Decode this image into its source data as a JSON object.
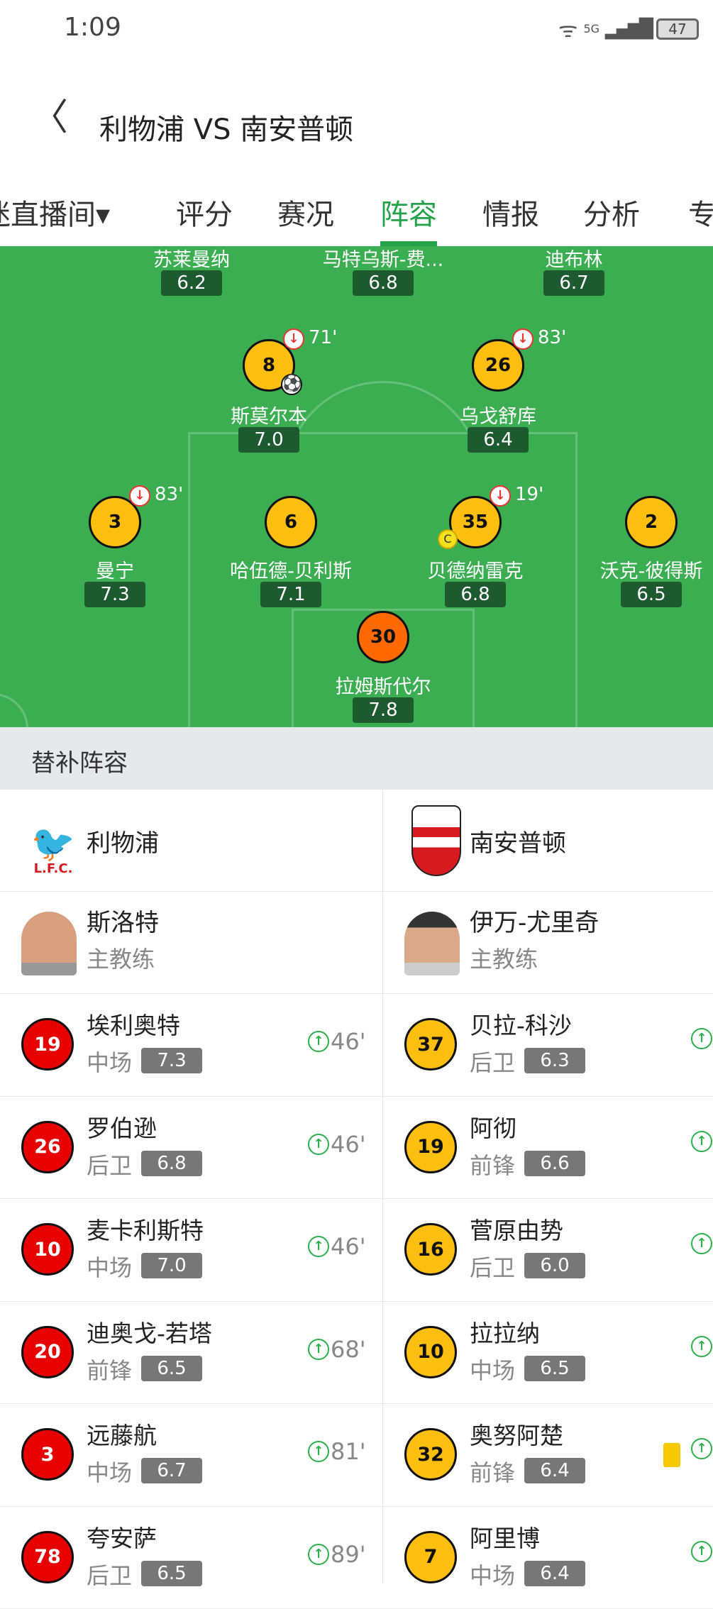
{
  "status_bar": {
    "time": "1:09",
    "network": "5G",
    "battery": "47"
  },
  "header": {
    "title": "利物浦 VS 南安普顿"
  },
  "tabs": [
    {
      "label": "迷直播间▾"
    },
    {
      "label": "评分"
    },
    {
      "label": "赛况"
    },
    {
      "label": "阵容",
      "active": true
    },
    {
      "label": "情报"
    },
    {
      "label": "分析"
    },
    {
      "label": "专"
    }
  ],
  "colors": {
    "accent": "#22a34a",
    "pitch": "#3cae52",
    "rating_box": "#1e5a30",
    "home_circle": "#e60000",
    "away_circle": "#fdbf0f",
    "goalkeeper": "#ff6a00"
  },
  "pitch_players": [
    {
      "name": "苏莱曼纳",
      "rating": "6.2"
    },
    {
      "name": "马特乌斯-费...",
      "rating": "6.8"
    },
    {
      "name": "迪布林",
      "rating": "6.7"
    },
    {
      "number": "8",
      "name": "斯莫尔本",
      "rating": "7.0",
      "sub_off": "71'",
      "goal": true
    },
    {
      "number": "26",
      "name": "乌戈舒库",
      "rating": "6.4",
      "sub_off": "83'"
    },
    {
      "number": "3",
      "name": "曼宁",
      "rating": "7.3",
      "sub_off": "83'"
    },
    {
      "number": "6",
      "name": "哈伍德-贝利斯",
      "rating": "7.1"
    },
    {
      "number": "35",
      "name": "贝德纳雷克",
      "rating": "6.8",
      "sub_off": "19'",
      "captain": "C"
    },
    {
      "number": "2",
      "name": "沃克-彼得斯",
      "rating": "6.5"
    },
    {
      "number": "30",
      "name": "拉姆斯代尔",
      "rating": "7.8",
      "goalkeeper": true
    }
  ],
  "substitutes": {
    "title": "替补阵容",
    "home": {
      "team": "利物浦",
      "crest": "L.F.C.",
      "coach": "斯洛特",
      "coach_role": "主教练",
      "players": [
        {
          "number": "19",
          "name": "埃利奥特",
          "position": "中场",
          "rating": "7.3",
          "sub_in": "46'"
        },
        {
          "number": "26",
          "name": "罗伯逊",
          "position": "后卫",
          "rating": "6.8",
          "sub_in": "46'"
        },
        {
          "number": "10",
          "name": "麦卡利斯特",
          "position": "中场",
          "rating": "7.0",
          "sub_in": "46'"
        },
        {
          "number": "20",
          "name": "迪奥戈-若塔",
          "position": "前锋",
          "rating": "6.5",
          "sub_in": "68'"
        },
        {
          "number": "3",
          "name": "远藤航",
          "position": "中场",
          "rating": "6.7",
          "sub_in": "81'"
        },
        {
          "number": "78",
          "name": "夸安萨",
          "position": "后卫",
          "rating": "6.5",
          "sub_in": "89'"
        }
      ]
    },
    "away": {
      "team": "南安普顿",
      "coach": "伊万-尤里奇",
      "coach_role": "主教练",
      "players": [
        {
          "number": "37",
          "name": "贝拉-科沙",
          "position": "后卫",
          "rating": "6.3",
          "sub_in": ""
        },
        {
          "number": "19",
          "name": "阿彻",
          "position": "前锋",
          "rating": "6.6",
          "sub_in": ""
        },
        {
          "number": "16",
          "name": "菅原由势",
          "position": "后卫",
          "rating": "6.0",
          "sub_in": ""
        },
        {
          "number": "10",
          "name": "拉拉纳",
          "position": "中场",
          "rating": "6.5",
          "sub_in": ""
        },
        {
          "number": "32",
          "name": "奥努阿楚",
          "position": "前锋",
          "rating": "6.4",
          "sub_in": "",
          "yellow_card": true
        },
        {
          "number": "7",
          "name": "阿里博",
          "position": "中场",
          "rating": "6.4",
          "sub_in": ""
        }
      ]
    }
  }
}
